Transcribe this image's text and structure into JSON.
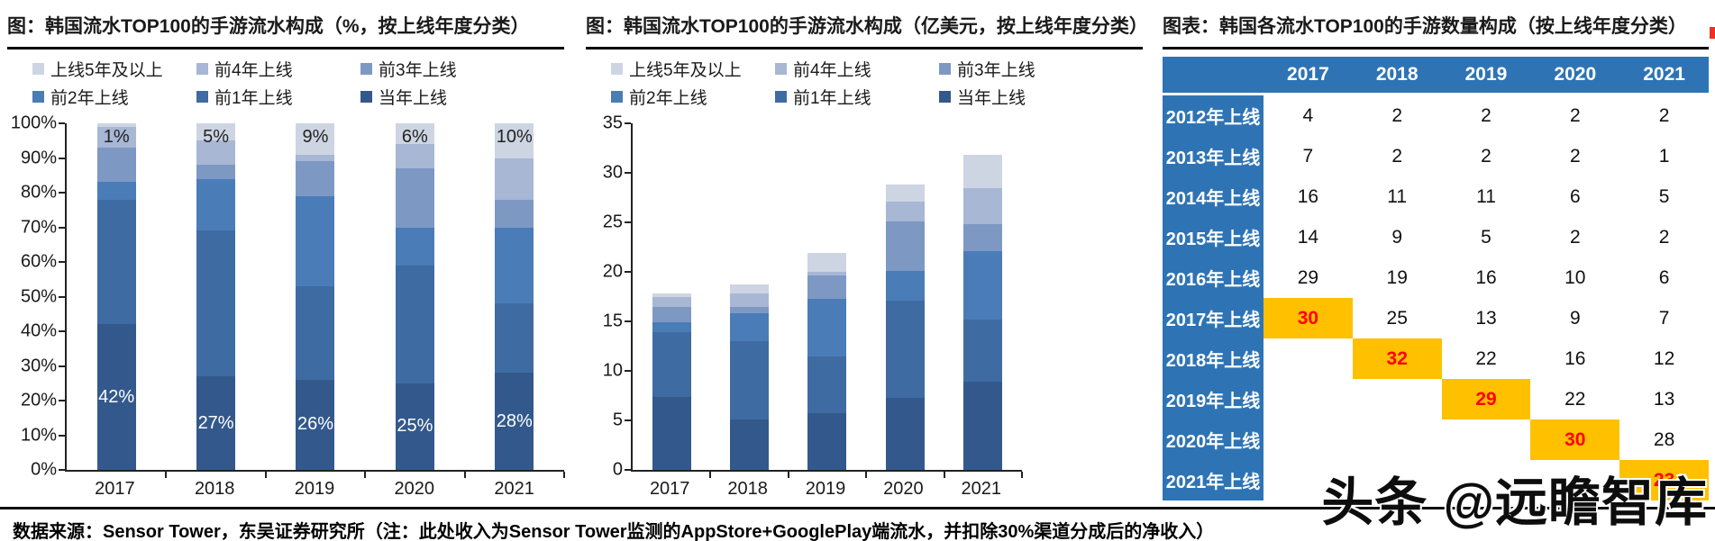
{
  "chart_data": [
    {
      "type": "bar",
      "stacked": true,
      "title": "图：韩国流水TOP100的手游流水构成（%，按上线年度分类）",
      "unit": "%",
      "categories": [
        "2017",
        "2018",
        "2019",
        "2020",
        "2021"
      ],
      "legend": [
        "上线5年及以上",
        "前4年上线",
        "前3年上线",
        "前2年上线",
        "前1年上线",
        "当年上线"
      ],
      "series": [
        {
          "name": "当年上线",
          "color": "#33598c",
          "values": [
            42,
            27,
            26,
            25,
            28
          ]
        },
        {
          "name": "前1年上线",
          "color": "#3f6ba3",
          "values": [
            36,
            42,
            27,
            34,
            20
          ]
        },
        {
          "name": "前2年上线",
          "color": "#4a7cb8",
          "values": [
            5,
            15,
            26,
            11,
            22
          ]
        },
        {
          "name": "前3年上线",
          "color": "#7e98c4",
          "values": [
            10,
            4,
            10,
            17,
            8
          ]
        },
        {
          "name": "前4年上线",
          "color": "#a7b7d4",
          "values": [
            6,
            7,
            2,
            7,
            12
          ]
        },
        {
          "name": "上线5年及以上",
          "color": "#cdd5e3",
          "values": [
            1,
            5,
            9,
            6,
            10
          ]
        }
      ],
      "top_labels": [
        "1%",
        "5%",
        "9%",
        "6%",
        "10%"
      ],
      "bottom_labels": [
        "42%",
        "27%",
        "26%",
        "25%",
        "28%"
      ],
      "y_ticks": [
        "100%",
        "90%",
        "80%",
        "70%",
        "60%",
        "50%",
        "40%",
        "30%",
        "20%",
        "10%",
        "0%"
      ],
      "ylim": [
        0,
        100
      ],
      "grid": false,
      "legend_position": "top"
    },
    {
      "type": "bar",
      "stacked": true,
      "title": "图：韩国流水TOP100的手游流水构成（亿美元，按上线年度分类）",
      "unit": "亿美元",
      "categories": [
        "2017",
        "2018",
        "2019",
        "2020",
        "2021"
      ],
      "legend": [
        "上线5年及以上",
        "前4年上线",
        "前3年上线",
        "前2年上线",
        "前1年上线",
        "当年上线"
      ],
      "series": [
        {
          "name": "当年上线",
          "color": "#33598c",
          "values": [
            7.4,
            5.1,
            5.7,
            7.3,
            8.9
          ]
        },
        {
          "name": "前1年上线",
          "color": "#3f6ba3",
          "values": [
            6.5,
            7.9,
            5.8,
            9.8,
            6.3
          ]
        },
        {
          "name": "前2年上线",
          "color": "#4a7cb8",
          "values": [
            1.0,
            2.8,
            5.8,
            3.0,
            6.9
          ]
        },
        {
          "name": "前3年上线",
          "color": "#7e98c4",
          "values": [
            1.6,
            0.7,
            2.3,
            5.0,
            2.7
          ]
        },
        {
          "name": "前4年上线",
          "color": "#a7b7d4",
          "values": [
            1.0,
            1.3,
            0.4,
            2.0,
            3.7
          ]
        },
        {
          "name": "上线5年及以上",
          "color": "#cdd5e3",
          "values": [
            0.3,
            0.9,
            1.9,
            1.7,
            3.3
          ]
        }
      ],
      "top_labels": null,
      "bottom_labels": null,
      "y_ticks": [
        "35",
        "30",
        "25",
        "20",
        "15",
        "10",
        "5",
        "0"
      ],
      "ylim": [
        0,
        35
      ],
      "grid": false,
      "legend_position": "top"
    },
    {
      "type": "table",
      "title": "图表：韩国各流水TOP100的手游数量构成（按上线年度分类）",
      "columns": [
        "2017",
        "2018",
        "2019",
        "2020",
        "2021"
      ],
      "rows": [
        {
          "label": "2012年上线",
          "values": [
            4,
            2,
            2,
            2,
            2
          ],
          "highlight_col": null
        },
        {
          "label": "2013年上线",
          "values": [
            7,
            2,
            2,
            2,
            1
          ],
          "highlight_col": null
        },
        {
          "label": "2014年上线",
          "values": [
            16,
            11,
            11,
            6,
            5
          ],
          "highlight_col": null
        },
        {
          "label": "2015年上线",
          "values": [
            14,
            9,
            5,
            2,
            2
          ],
          "highlight_col": null
        },
        {
          "label": "2016年上线",
          "values": [
            29,
            19,
            16,
            10,
            6
          ],
          "highlight_col": null
        },
        {
          "label": "2017年上线",
          "values": [
            30,
            25,
            13,
            9,
            7
          ],
          "highlight_col": 0
        },
        {
          "label": "2018年上线",
          "values": [
            null,
            32,
            22,
            16,
            12
          ],
          "highlight_col": 1
        },
        {
          "label": "2019年上线",
          "values": [
            null,
            null,
            29,
            22,
            13
          ],
          "highlight_col": 2
        },
        {
          "label": "2020年上线",
          "values": [
            null,
            null,
            null,
            30,
            28
          ],
          "highlight_col": 3
        },
        {
          "label": "2021年上线",
          "values": [
            null,
            null,
            null,
            null,
            23
          ],
          "highlight_col": 4
        }
      ],
      "highlight_color": "#ffc000",
      "highlight_text_color": "#ff0000",
      "header_color": "#2e74b5"
    }
  ],
  "footer": {
    "source_note": "数据来源：Sensor Tower，东吴证券研究所（注：此处收入为Sensor Tower监测的AppStore+GooglePlay端流水，并扣除30%渠道分成后的净收入）"
  },
  "watermark": {
    "text": "头条 @远瞻智库"
  }
}
